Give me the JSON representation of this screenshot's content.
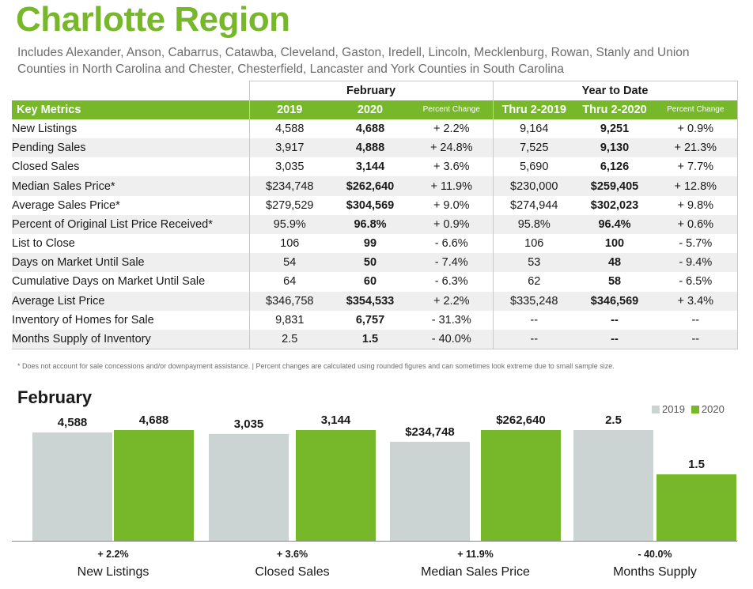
{
  "header": {
    "title": "Charlotte Region",
    "subtitle": "Includes Alexander, Anson, Cabarrus, Catawba, Cleveland, Gaston, Iredell, Lincoln, Mecklenburg, Rowan, Stanly and Union Counties in North Carolina and Chester, Chesterfield, Lancaster and York Counties in South Carolina"
  },
  "table": {
    "group_month": "February",
    "group_ytd": "Year to Date",
    "columns": [
      "Key Metrics",
      "2019",
      "2020",
      "Percent Change",
      "Thru 2-2019",
      "Thru 2-2020",
      "Percent Change"
    ],
    "rows": [
      [
        "New Listings",
        "4,588",
        "4,688",
        "+ 2.2%",
        "9,164",
        "9,251",
        "+ 0.9%"
      ],
      [
        "Pending Sales",
        "3,917",
        "4,888",
        "+ 24.8%",
        "7,525",
        "9,130",
        "+ 21.3%"
      ],
      [
        "Closed Sales",
        "3,035",
        "3,144",
        "+ 3.6%",
        "5,690",
        "6,126",
        "+ 7.7%"
      ],
      [
        "Median Sales Price*",
        "$234,748",
        "$262,640",
        "+ 11.9%",
        "$230,000",
        "$259,405",
        "+ 12.8%"
      ],
      [
        "Average Sales Price*",
        "$279,529",
        "$304,569",
        "+ 9.0%",
        "$274,944",
        "$302,023",
        "+ 9.8%"
      ],
      [
        "Percent of Original List Price Received*",
        "95.9%",
        "96.8%",
        "+ 0.9%",
        "95.8%",
        "96.4%",
        "+ 0.6%"
      ],
      [
        "List to Close",
        "106",
        "99",
        "- 6.6%",
        "106",
        "100",
        "- 5.7%"
      ],
      [
        "Days on Market Until Sale",
        "54",
        "50",
        "- 7.4%",
        "53",
        "48",
        "- 9.4%"
      ],
      [
        "Cumulative Days on Market Until Sale",
        "64",
        "60",
        "- 6.3%",
        "62",
        "58",
        "- 6.5%"
      ],
      [
        "Average List Price",
        "$346,758",
        "$354,533",
        "+ 2.2%",
        "$335,248",
        "$346,569",
        "+ 3.4%"
      ],
      [
        "Inventory of Homes for Sale",
        "9,831",
        "6,757",
        "- 31.3%",
        "--",
        "--",
        "--"
      ],
      [
        "Months Supply of Inventory",
        "2.5",
        "1.5",
        "- 40.0%",
        "--",
        "--",
        "--"
      ]
    ]
  },
  "footnote": "* Does not account for sale concessions and/or downpayment assistance. | Percent changes are calculated using rounded figures and can sometimes look extreme due to small sample size.",
  "colors": {
    "green": "#76b82a",
    "gray": "#cbd3d3"
  },
  "chart_data": {
    "type": "bar",
    "title": "February",
    "legend": [
      "2019",
      "2020"
    ],
    "legend_position": "top-right",
    "series": [
      {
        "name": "2019",
        "values": [
          4588,
          3035,
          234748,
          2.5
        ]
      },
      {
        "name": "2020",
        "values": [
          4688,
          3144,
          262640,
          1.5
        ]
      }
    ],
    "groups": [
      {
        "category": "New Listings",
        "values": [
          4588,
          4688
        ],
        "labels": [
          "4,588",
          "4,688"
        ],
        "change": "+ 2.2%"
      },
      {
        "category": "Closed Sales",
        "values": [
          3035,
          3144
        ],
        "labels": [
          "3,035",
          "3,144"
        ],
        "change": "+ 3.6%"
      },
      {
        "category": "Median Sales Price",
        "values": [
          234748,
          262640
        ],
        "labels": [
          "$234,748",
          "$262,640"
        ],
        "change": "+ 11.9%"
      },
      {
        "category": "Months Supply",
        "values": [
          2.5,
          1.5
        ],
        "labels": [
          "2.5",
          "1.5"
        ],
        "change": "- 40.0%"
      }
    ]
  }
}
